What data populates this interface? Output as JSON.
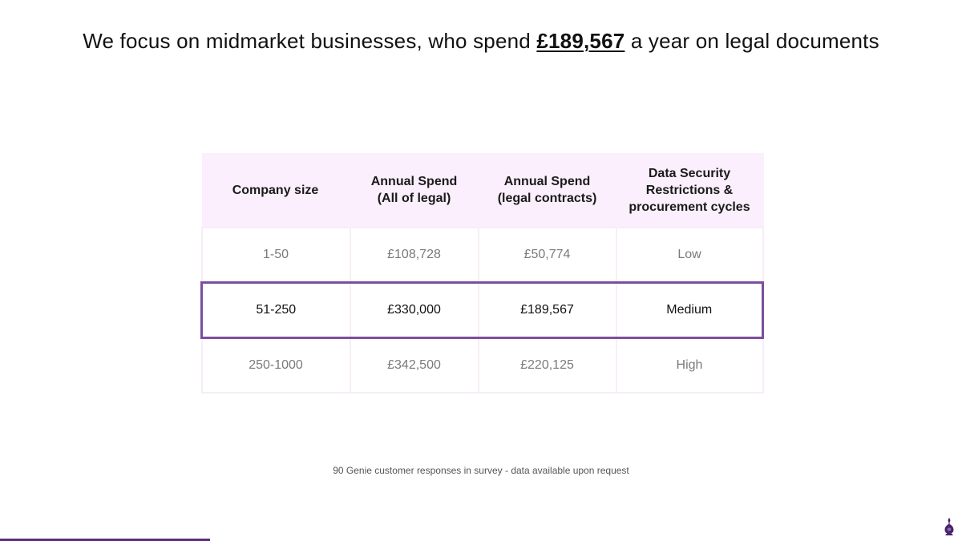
{
  "headline": {
    "prefix": "We focus on midmarket businesses, who spend ",
    "highlight": "£189,567",
    "suffix": " a year on legal documents"
  },
  "table": {
    "headers": [
      "Company size",
      "Annual Spend (All of legal)",
      "Annual Spend (legal contracts)",
      "Data Security Restrictions & procurement cycles"
    ],
    "rows": [
      [
        "1-50",
        "£108,728",
        "£50,774",
        "Low"
      ],
      [
        "51-250",
        "£330,000",
        "£189,567",
        "Medium"
      ],
      [
        "250-1000",
        "£342,500",
        "£220,125",
        "High"
      ]
    ],
    "highlighted_row": 1
  },
  "footnote": "90 Genie customer responses in survey - data available upon request",
  "colors": {
    "accent": "#7b4fa0",
    "header_bg": "#fbeefd",
    "brand_line": "#5b2d82"
  },
  "logo": {
    "icon": "genie-lamp-icon"
  }
}
